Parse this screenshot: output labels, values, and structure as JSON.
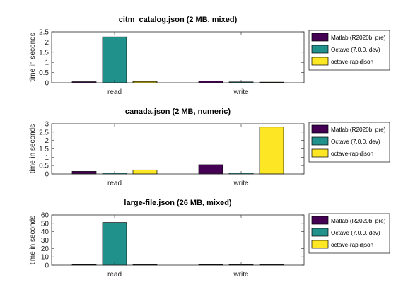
{
  "chart_data": [
    {
      "type": "bar",
      "title": "citm_catalog.json (2 MB, mixed)",
      "xlabel": "",
      "ylabel": "time in seconds",
      "categories": [
        "read",
        "write"
      ],
      "ylim": [
        0,
        2.5
      ],
      "yticks": [
        0,
        0.5,
        1,
        1.5,
        2,
        2.5
      ],
      "ytick_labels": [
        "0",
        "0.5",
        "1",
        "1.5",
        "2",
        "2.5"
      ],
      "grid": false,
      "legend_position": "right",
      "series": [
        {
          "name": "Matlab (R2020b, pre)",
          "color": "#440154",
          "values": [
            0.05,
            0.08
          ]
        },
        {
          "name": "Octave (7.0.0, dev)",
          "color": "#21918c",
          "values": [
            2.25,
            0.04
          ]
        },
        {
          "name": "octave-rapidjson",
          "color": "#fde725",
          "values": [
            0.06,
            0.03
          ]
        }
      ]
    },
    {
      "type": "bar",
      "title": "canada.json (2 MB, numeric)",
      "xlabel": "",
      "ylabel": "time in seconds",
      "categories": [
        "read",
        "write"
      ],
      "ylim": [
        0,
        3
      ],
      "yticks": [
        0,
        0.5,
        1,
        1.5,
        2,
        2.5,
        3
      ],
      "ytick_labels": [
        "0",
        "0.5",
        "1",
        "1.5",
        "2",
        "2.5",
        "3"
      ],
      "grid": false,
      "legend_position": "right",
      "series": [
        {
          "name": "Matlab (R2020b, pre)",
          "color": "#440154",
          "values": [
            0.15,
            0.55
          ]
        },
        {
          "name": "Octave (7.0.0, dev)",
          "color": "#21918c",
          "values": [
            0.07,
            0.07
          ]
        },
        {
          "name": "octave-rapidjson",
          "color": "#fde725",
          "values": [
            0.24,
            2.8
          ]
        }
      ]
    },
    {
      "type": "bar",
      "title": "large-file.json (26 MB, mixed)",
      "xlabel": "",
      "ylabel": "time in seconds",
      "categories": [
        "read",
        "write"
      ],
      "ylim": [
        0,
        60
      ],
      "yticks": [
        0,
        10,
        20,
        30,
        40,
        50,
        60
      ],
      "ytick_labels": [
        "0",
        "10",
        "20",
        "30",
        "40",
        "50",
        "60"
      ],
      "grid": false,
      "legend_position": "right",
      "series": [
        {
          "name": "Matlab (R2020b, pre)",
          "color": "#440154",
          "values": [
            0.6,
            0.4
          ]
        },
        {
          "name": "Octave (7.0.0, dev)",
          "color": "#21918c",
          "values": [
            51,
            0.6
          ]
        },
        {
          "name": "octave-rapidjson",
          "color": "#fde725",
          "values": [
            0.2,
            0.1
          ]
        }
      ]
    }
  ]
}
